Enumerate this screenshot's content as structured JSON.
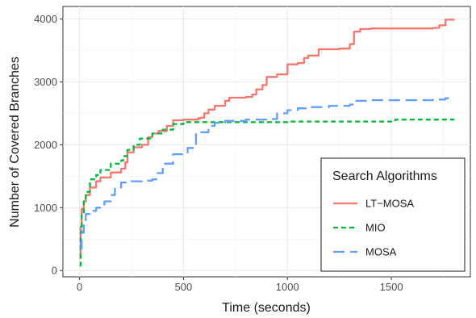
{
  "chart_data": {
    "type": "line",
    "xlabel": "Time (seconds)",
    "ylabel": "Number of Covered Branches",
    "xlim": [
      -80,
      1880
    ],
    "ylim": [
      -100,
      4200
    ],
    "x_ticks": [
      0,
      500,
      1000,
      1500
    ],
    "y_ticks": [
      0,
      1000,
      2000,
      3000,
      4000
    ],
    "grid": true,
    "legend_title": "Search Algorithms",
    "legend_position": "bottom-right",
    "series": [
      {
        "name": "LT−MOSA",
        "color": "#f8766d",
        "dash": "solid",
        "points": [
          [
            0,
            200
          ],
          [
            5,
            700
          ],
          [
            10,
            980
          ],
          [
            20,
            1100
          ],
          [
            30,
            1200
          ],
          [
            50,
            1320
          ],
          [
            80,
            1420
          ],
          [
            100,
            1480
          ],
          [
            150,
            1560
          ],
          [
            200,
            1620
          ],
          [
            220,
            1720
          ],
          [
            230,
            1880
          ],
          [
            260,
            1960
          ],
          [
            300,
            2000
          ],
          [
            330,
            2120
          ],
          [
            350,
            2180
          ],
          [
            380,
            2220
          ],
          [
            420,
            2300
          ],
          [
            450,
            2390
          ],
          [
            500,
            2400
          ],
          [
            570,
            2420
          ],
          [
            580,
            2430
          ],
          [
            600,
            2500
          ],
          [
            620,
            2560
          ],
          [
            650,
            2620
          ],
          [
            700,
            2700
          ],
          [
            720,
            2750
          ],
          [
            800,
            2760
          ],
          [
            830,
            2800
          ],
          [
            850,
            2880
          ],
          [
            880,
            2950
          ],
          [
            900,
            3080
          ],
          [
            950,
            3120
          ],
          [
            1000,
            3280
          ],
          [
            1050,
            3300
          ],
          [
            1080,
            3380
          ],
          [
            1100,
            3420
          ],
          [
            1150,
            3520
          ],
          [
            1250,
            3530
          ],
          [
            1300,
            3600
          ],
          [
            1320,
            3800
          ],
          [
            1350,
            3840
          ],
          [
            1400,
            3850
          ],
          [
            1700,
            3860
          ],
          [
            1730,
            3900
          ],
          [
            1760,
            3990
          ],
          [
            1800,
            4000
          ]
        ]
      },
      {
        "name": "MIO",
        "color": "#00ba38",
        "dash": "6,4",
        "points": [
          [
            0,
            80
          ],
          [
            5,
            600
          ],
          [
            10,
            900
          ],
          [
            20,
            1100
          ],
          [
            30,
            1250
          ],
          [
            50,
            1450
          ],
          [
            80,
            1520
          ],
          [
            100,
            1600
          ],
          [
            150,
            1700
          ],
          [
            200,
            1750
          ],
          [
            210,
            1820
          ],
          [
            230,
            1920
          ],
          [
            260,
            2000
          ],
          [
            290,
            2100
          ],
          [
            350,
            2180
          ],
          [
            400,
            2240
          ],
          [
            450,
            2330
          ],
          [
            500,
            2360
          ],
          [
            700,
            2360
          ],
          [
            1000,
            2370
          ],
          [
            1500,
            2390
          ],
          [
            1520,
            2400
          ],
          [
            1800,
            2410
          ]
        ]
      },
      {
        "name": "MOSA",
        "color": "#619cff",
        "dash": "14,7",
        "points": [
          [
            0,
            350
          ],
          [
            10,
            600
          ],
          [
            20,
            800
          ],
          [
            30,
            900
          ],
          [
            50,
            950
          ],
          [
            80,
            1000
          ],
          [
            100,
            1050
          ],
          [
            120,
            1100
          ],
          [
            150,
            1200
          ],
          [
            170,
            1300
          ],
          [
            200,
            1400
          ],
          [
            250,
            1420
          ],
          [
            300,
            1430
          ],
          [
            350,
            1450
          ],
          [
            370,
            1550
          ],
          [
            400,
            1700
          ],
          [
            450,
            1850
          ],
          [
            500,
            1880
          ],
          [
            520,
            1950
          ],
          [
            560,
            2200
          ],
          [
            620,
            2300
          ],
          [
            650,
            2350
          ],
          [
            700,
            2380
          ],
          [
            800,
            2400
          ],
          [
            900,
            2410
          ],
          [
            950,
            2500
          ],
          [
            1000,
            2550
          ],
          [
            1050,
            2580
          ],
          [
            1100,
            2600
          ],
          [
            1200,
            2620
          ],
          [
            1300,
            2640
          ],
          [
            1320,
            2700
          ],
          [
            1400,
            2710
          ],
          [
            1700,
            2720
          ],
          [
            1760,
            2740
          ],
          [
            1800,
            2750
          ]
        ]
      }
    ]
  }
}
